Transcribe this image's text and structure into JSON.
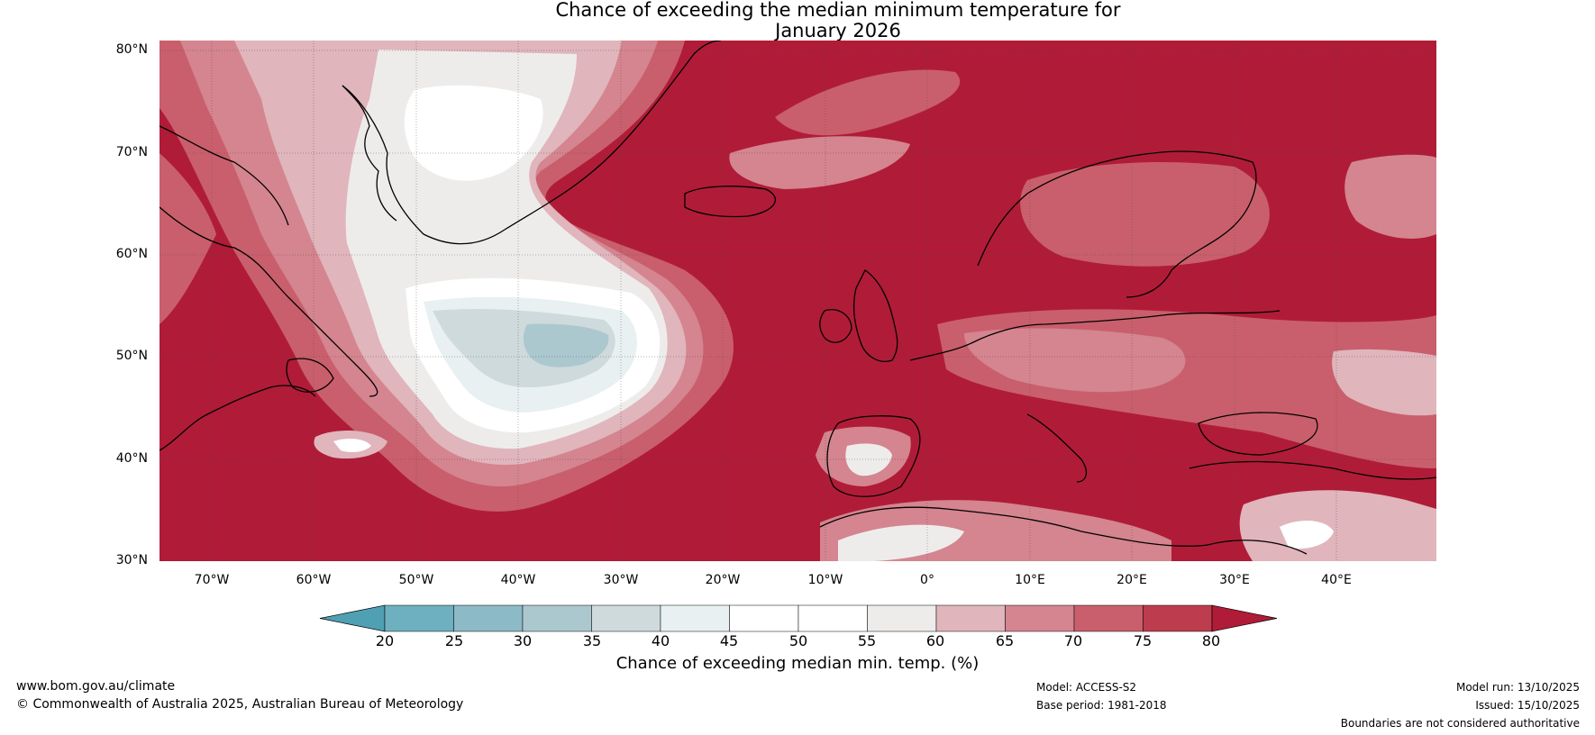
{
  "title": {
    "line1": "Chance of exceeding the median minimum temperature for",
    "line2": "January 2026"
  },
  "latitude_labels": [
    "80°N",
    "70°N",
    "60°N",
    "50°N",
    "40°N",
    "30°N"
  ],
  "longitude_labels": [
    "70°W",
    "60°W",
    "50°W",
    "40°W",
    "30°W",
    "20°W",
    "10°W",
    "0°",
    "10°E",
    "20°E",
    "30°E",
    "40°E"
  ],
  "colorbar": {
    "title": "Chance of exceeding median min. temp. (%)",
    "ticks": [
      "20",
      "25",
      "30",
      "35",
      "40",
      "45",
      "50",
      "55",
      "60",
      "65",
      "70",
      "75",
      "80"
    ],
    "colors": [
      "#4fa0b2",
      "#6eb0bf",
      "#8cbac6",
      "#acc8cf",
      "#cfdadd",
      "#e9f0f2",
      "#ffffff",
      "#ffffff",
      "#eeeceb",
      "#e0b5bc",
      "#d4858f",
      "#c95f6c",
      "#bd3c4e",
      "#b01c38"
    ]
  },
  "colors": {
    "high": "#b01c38",
    "mid_high": "#c95f6c",
    "mid": "#d4858f",
    "light": "#e0b5bc",
    "neutral": "#eeeceb",
    "white": "#ffffff",
    "cool1": "#cfdadd",
    "cool2": "#acc8cf",
    "coast": "#000000",
    "border": "#888888"
  },
  "footer": {
    "website": "www.bom.gov.au/climate",
    "copyright": "© Commonwealth of Australia 2025, Australian Bureau of Meteorology",
    "model": "Model: ACCESS-S2",
    "base_period": "Base period: 1981-2018",
    "model_run": "Model run: 13/10/2025",
    "issued": "Issued: 15/10/2025",
    "disclaimer": "Boundaries are not considered authoritative"
  }
}
